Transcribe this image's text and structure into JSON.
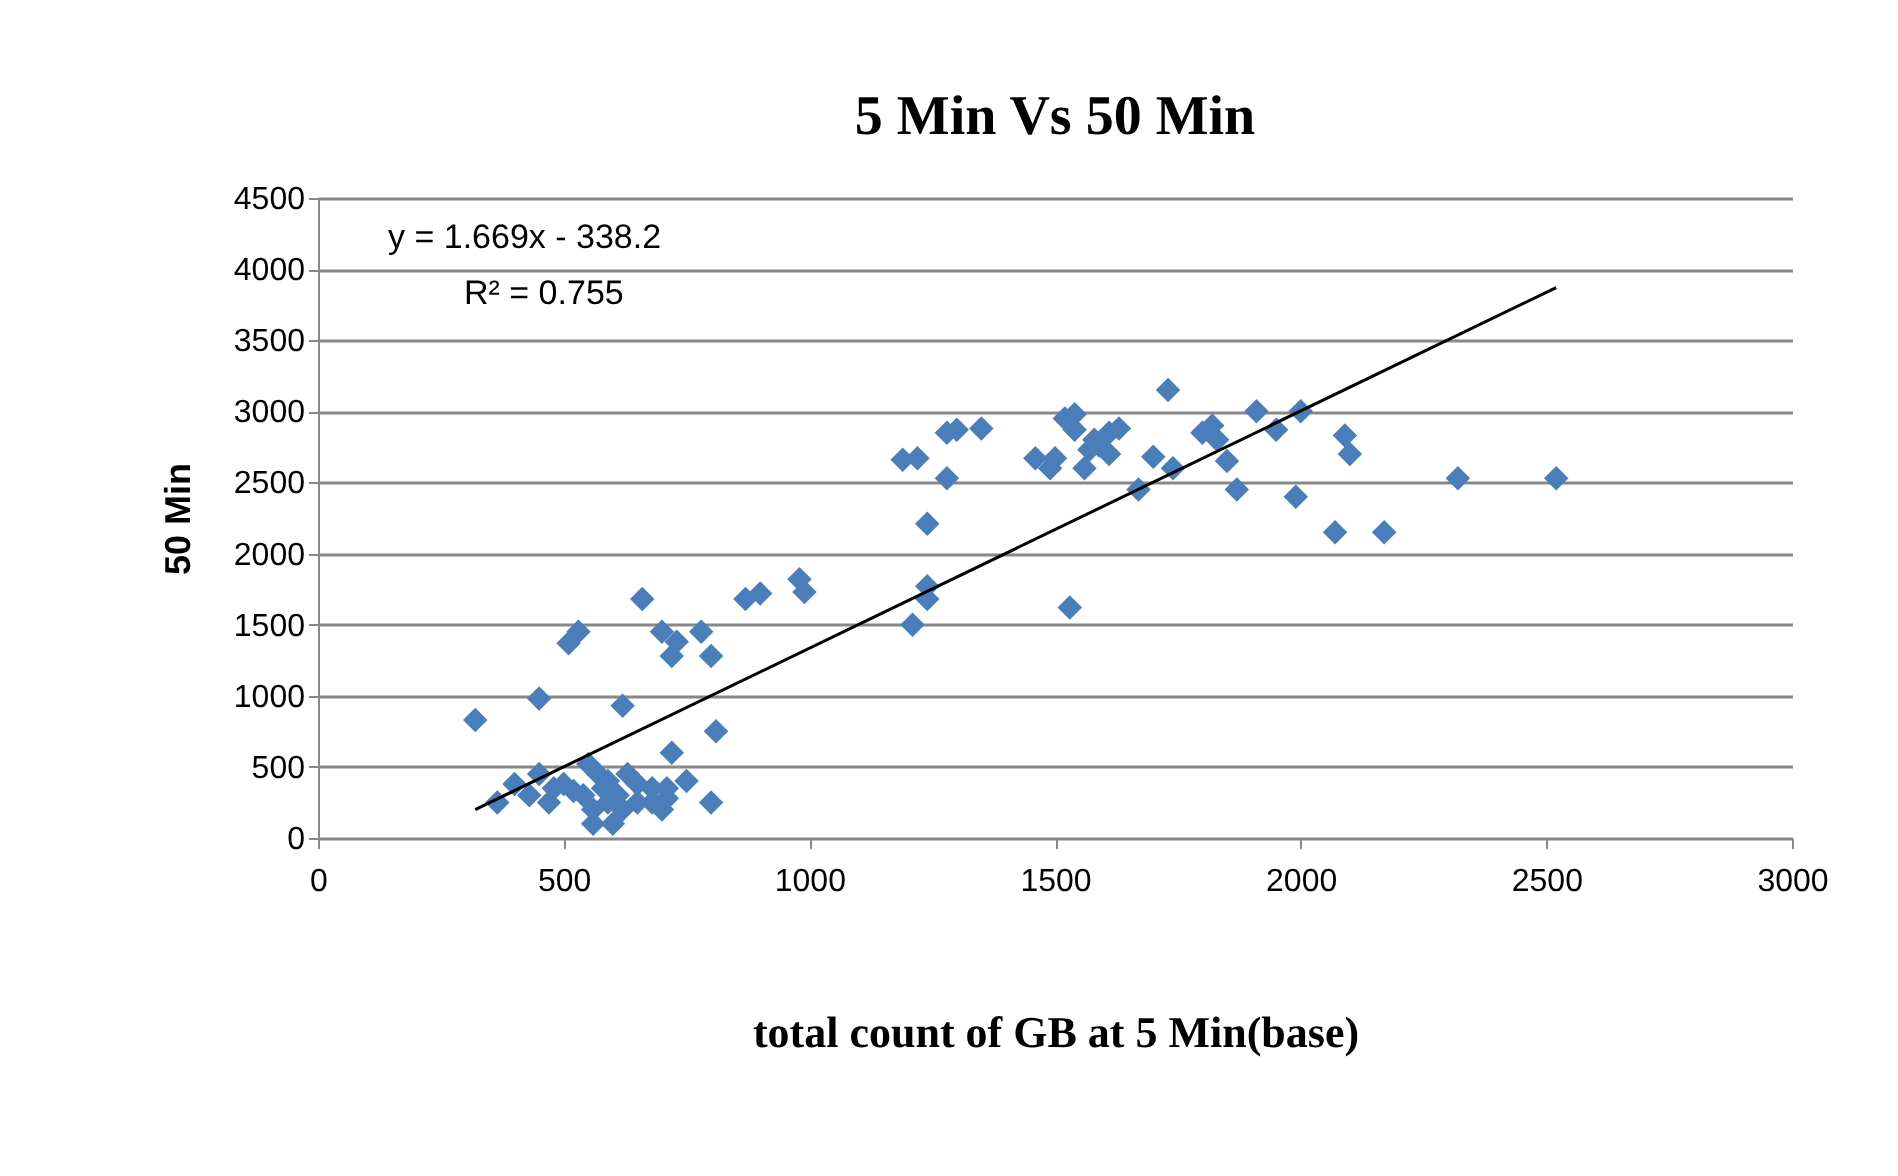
{
  "chart_data": {
    "type": "scatter",
    "title": "5 Min Vs 50 Min",
    "xlabel": "total  count of  GB at  5 Min(base)",
    "ylabel": "50 Min",
    "xlim": [
      0,
      3000
    ],
    "xticks": [
      0,
      500,
      1000,
      1500,
      2000,
      2500,
      3000
    ],
    "ylim": [
      0,
      4500
    ],
    "yticks": [
      0,
      500,
      1000,
      1500,
      2000,
      2500,
      3000,
      3500,
      4000,
      4500
    ],
    "grid": "y",
    "marker": "diamond",
    "annotations": [
      "y = 1.669x - 338.2",
      "R² = 0.755"
    ],
    "series": [
      {
        "color": "#4a7ebb",
        "x": [
          320,
          365,
          400,
          430,
          450,
          450,
          470,
          500,
          510,
          530,
          540,
          550,
          560,
          570,
          580,
          590,
          600,
          610,
          620,
          630,
          650,
          660,
          680,
          700,
          700,
          710,
          720,
          720,
          730,
          750,
          780,
          800,
          810,
          800,
          650,
          520,
          480,
          560,
          590,
          620,
          680,
          710,
          870,
          900,
          980,
          990,
          1190,
          1220,
          1210,
          1240,
          1240,
          1240,
          1280,
          1280,
          1300,
          1350,
          1460,
          1490,
          1500,
          1520,
          1530,
          1540,
          1560,
          1570,
          1580,
          1610,
          1630,
          1670,
          1700,
          1730,
          1740,
          1800,
          1820,
          1830,
          1850,
          1870,
          1910,
          1950,
          1990,
          2000,
          2070,
          2090,
          2100,
          2170,
          2320,
          2520,
          1540,
          1590,
          1610
        ],
        "values": [
          830,
          250,
          380,
          300,
          450,
          980,
          250,
          380,
          1370,
          1450,
          300,
          520,
          100,
          450,
          350,
          250,
          100,
          300,
          930,
          450,
          250,
          1680,
          350,
          1450,
          200,
          350,
          1280,
          600,
          1380,
          400,
          1450,
          1280,
          750,
          250,
          380,
          330,
          350,
          200,
          400,
          200,
          250,
          280,
          1680,
          1720,
          1820,
          1730,
          2660,
          2670,
          1500,
          1770,
          2210,
          1680,
          2530,
          2850,
          2870,
          2880,
          2670,
          2600,
          2670,
          2950,
          1620,
          2870,
          2600,
          2730,
          2800,
          2850,
          2880,
          2450,
          2680,
          3150,
          2600,
          2850,
          2900,
          2800,
          2650,
          2450,
          3000,
          2870,
          2400,
          3000,
          2150,
          2830,
          2700,
          2150,
          2530,
          2530,
          2980,
          2760,
          2700
        ]
      },
      {
        "type": "line",
        "marker": "none",
        "color": "#000000",
        "x": [
          320,
          2520
        ],
        "values": [
          200,
          3870
        ]
      }
    ]
  }
}
